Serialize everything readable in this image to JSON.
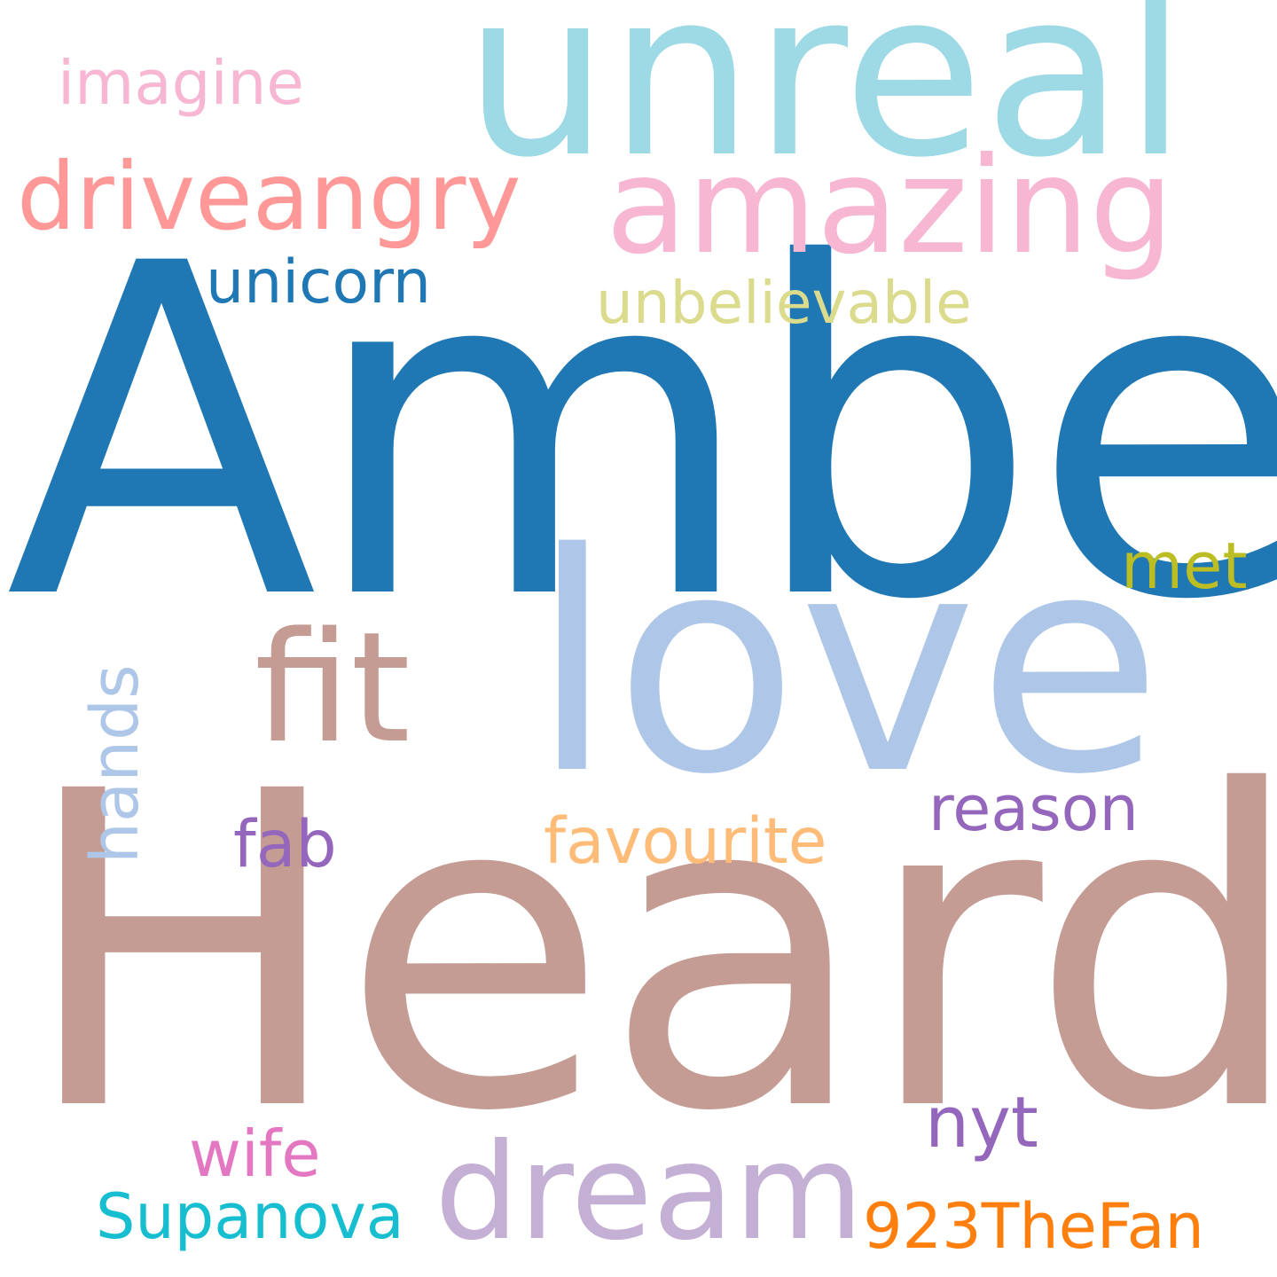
{
  "words": [
    {
      "key": "amber",
      "text": "Amber",
      "color": "#1f77b4"
    },
    {
      "key": "heard",
      "text": "Heard",
      "color": "#c49c94"
    },
    {
      "key": "unreal",
      "text": "unreal",
      "color": "#9edae5"
    },
    {
      "key": "love",
      "text": "love",
      "color": "#aec7e8"
    },
    {
      "key": "amazing",
      "text": "amazing",
      "color": "#f7b6d2"
    },
    {
      "key": "dream",
      "text": "dream",
      "color": "#c5b0d5"
    },
    {
      "key": "fit",
      "text": "fit",
      "color": "#c49c94"
    },
    {
      "key": "driveangry",
      "text": "driveangry",
      "color": "#ff9896"
    },
    {
      "key": "unicorn",
      "text": "unicorn",
      "color": "#1f77b4"
    },
    {
      "key": "unbelievable",
      "text": "unbelievable",
      "color": "#dbdb8d"
    },
    {
      "key": "imagine",
      "text": "imagine",
      "color": "#f7b6d2"
    },
    {
      "key": "met",
      "text": "met",
      "color": "#bcbd22"
    },
    {
      "key": "reason",
      "text": "reason",
      "color": "#9467bd"
    },
    {
      "key": "favourite",
      "text": "favourite",
      "color": "#ffbb78"
    },
    {
      "key": "fab",
      "text": "fab",
      "color": "#9467bd"
    },
    {
      "key": "hands",
      "text": "hands",
      "color": "#aec7e8"
    },
    {
      "key": "nyt",
      "text": "nyt",
      "color": "#9467bd"
    },
    {
      "key": "wife",
      "text": "wife",
      "color": "#e377c2"
    },
    {
      "key": "supanova",
      "text": "Supanova",
      "color": "#17becf"
    },
    {
      "key": "fan923",
      "text": "923TheFan",
      "color": "#ff7f0e"
    }
  ]
}
